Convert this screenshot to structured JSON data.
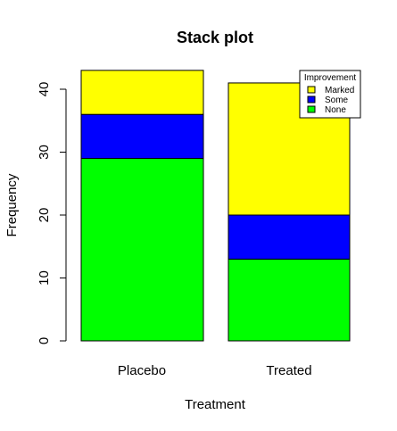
{
  "chart_data": {
    "type": "bar",
    "stacked": true,
    "title": "Stack plot",
    "xlabel": "Treatment",
    "ylabel": "Frequency",
    "categories": [
      "Placebo",
      "Treated"
    ],
    "series": [
      {
        "name": "None",
        "values": [
          29,
          13
        ],
        "color": "#00ff00"
      },
      {
        "name": "Some",
        "values": [
          7,
          7
        ],
        "color": "#0000ff"
      },
      {
        "name": "Marked",
        "values": [
          7,
          21
        ],
        "color": "#ffff00"
      }
    ],
    "ylim": [
      0,
      43
    ],
    "yticks": [
      0,
      10,
      20,
      30,
      40
    ],
    "grid": false,
    "legend": {
      "title": "Improvement",
      "placement": "top-right",
      "order": [
        "Marked",
        "Some",
        "None"
      ]
    }
  }
}
